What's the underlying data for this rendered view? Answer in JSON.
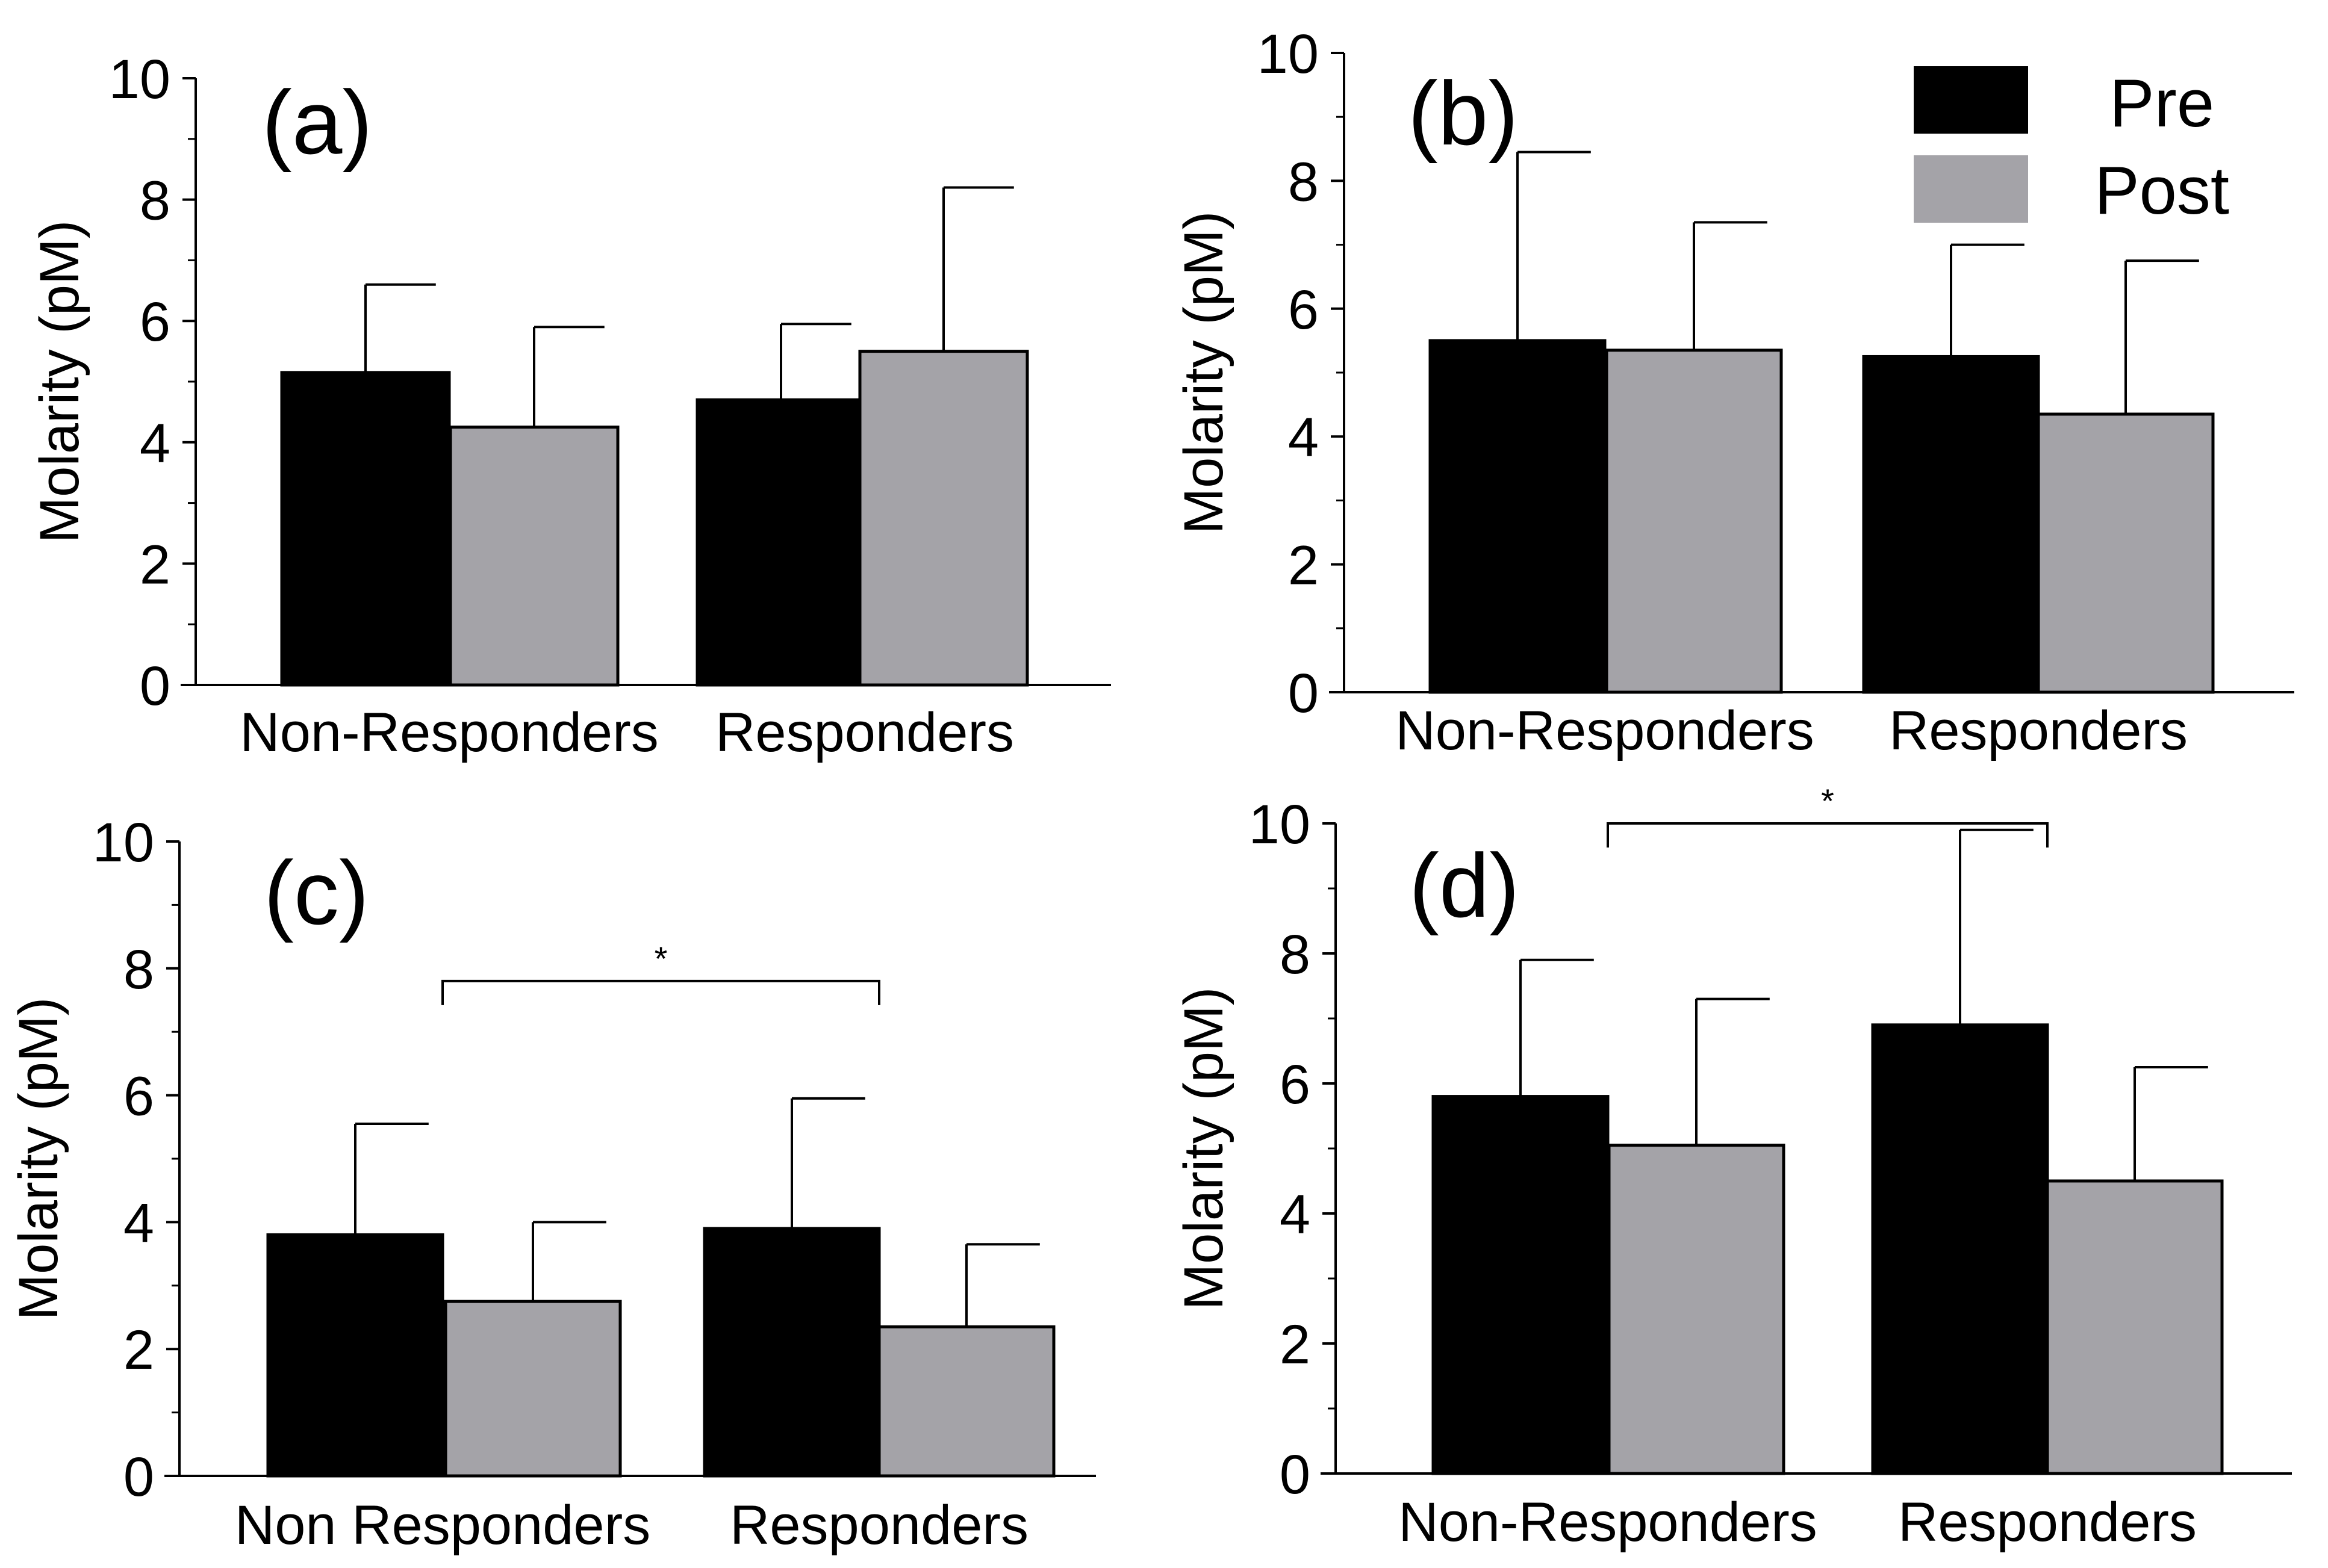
{
  "legend": {
    "items": [
      {
        "name": "Pre",
        "color": "#000000"
      },
      {
        "name": "Post",
        "color": "#a4a3a8"
      }
    ]
  },
  "chart_data": [
    {
      "type": "bar",
      "panel_label": "(a)",
      "categories": [
        "Non-Responders",
        "Responders"
      ],
      "series": [
        {
          "name": "Pre",
          "values": [
            5.15,
            4.7
          ],
          "errors": [
            1.45,
            1.25
          ]
        },
        {
          "name": "Post",
          "values": [
            4.25,
            5.5
          ],
          "errors": [
            1.65,
            2.7
          ]
        }
      ],
      "ylabel": "Molarity (pM)",
      "ylim": [
        0,
        10
      ],
      "yticks": [
        "0",
        "2",
        "4",
        "6",
        "8",
        "10"
      ],
      "significance": null
    },
    {
      "type": "bar",
      "panel_label": "(b)",
      "categories": [
        "Non-Responders",
        "Responders"
      ],
      "series": [
        {
          "name": "Pre",
          "values": [
            5.5,
            5.25
          ],
          "errors": [
            2.95,
            1.75
          ]
        },
        {
          "name": "Post",
          "values": [
            5.35,
            4.35
          ],
          "errors": [
            2.0,
            2.4
          ]
        }
      ],
      "ylabel": "Molarity (pM)",
      "ylim": [
        0,
        10
      ],
      "yticks": [
        "0",
        "2",
        "4",
        "6",
        "8",
        "10"
      ],
      "significance": null
    },
    {
      "type": "bar",
      "panel_label": "(c)",
      "categories": [
        "Non Responders",
        "Responders"
      ],
      "series": [
        {
          "name": "Pre",
          "values": [
            3.8,
            3.9
          ],
          "errors": [
            1.75,
            2.05
          ]
        },
        {
          "name": "Post",
          "values": [
            2.75,
            2.35
          ],
          "errors": [
            1.25,
            1.3
          ]
        }
      ],
      "ylabel": "Molarity (pM)",
      "ylim": [
        0,
        10
      ],
      "yticks": [
        "0",
        "2",
        "4",
        "6",
        "8",
        "10"
      ],
      "significance": {
        "from": "Pre:Non Responders",
        "to": "Pre:Responders",
        "level": 7.8,
        "label": "*"
      }
    },
    {
      "type": "bar",
      "panel_label": "(d)",
      "categories": [
        "Non-Responders",
        "Responders"
      ],
      "series": [
        {
          "name": "Pre",
          "values": [
            5.8,
            6.9
          ],
          "errors": [
            2.1,
            3.0
          ]
        },
        {
          "name": "Post",
          "values": [
            5.05,
            4.5
          ],
          "errors": [
            2.25,
            1.75
          ]
        }
      ],
      "ylabel": "Molarity (pM)",
      "ylim": [
        0,
        10
      ],
      "yticks": [
        "0",
        "2",
        "4",
        "6",
        "8",
        "10"
      ],
      "significance": {
        "from": "Pre:Non-Responders",
        "to": "Pre:Responders",
        "level": 10.0,
        "label": "*"
      }
    }
  ]
}
